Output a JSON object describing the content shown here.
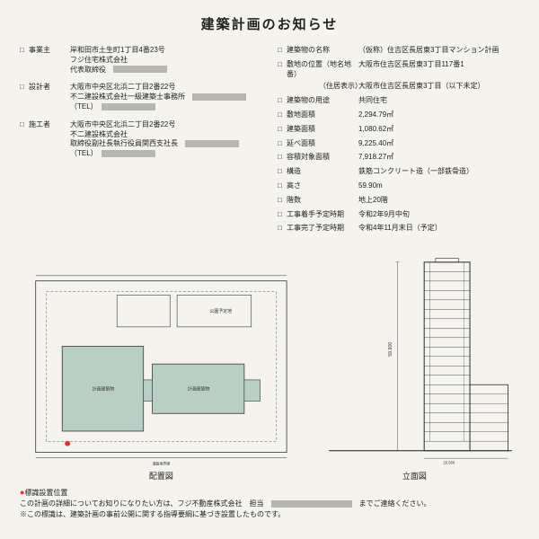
{
  "title": "建築計画のお知らせ",
  "left": [
    {
      "label": "事業主",
      "lines": [
        "岸和田市土生町1丁目4番23号",
        "フジ住宅株式会社",
        "代表取締役　"
      ],
      "redact": [
        false,
        false,
        true
      ]
    },
    {
      "label": "設計者",
      "lines": [
        "大阪市中央区北浜二丁目2番22号",
        "不二建設株式会社一級建築士事務所　",
        "（TEL）　"
      ],
      "redact": [
        false,
        true,
        true
      ]
    },
    {
      "label": "施工者",
      "lines": [
        "大阪市中央区北浜二丁目2番22号",
        "不二建設株式会社",
        "取締役副社長執行役員関西支社長　",
        "（TEL）　"
      ],
      "redact": [
        false,
        false,
        true,
        true
      ]
    }
  ],
  "right": [
    {
      "label": "建築物の名称",
      "value": "（仮称）住吉区長居東3丁目マンション計画"
    },
    {
      "label": "敷地の位置（地名地番）\n　　　　　（住居表示）",
      "value": "大阪市住吉区長居東3丁目117番1\n大阪市住吉区長居東3丁目（以下未定）"
    },
    {
      "label": "建築物の用途",
      "value": "共同住宅"
    },
    {
      "label": "敷地面積",
      "value": "2,294.79㎡"
    },
    {
      "label": "建築面積",
      "value": "1,080.62㎡"
    },
    {
      "label": "延べ面積",
      "value": "9,225.40㎡"
    },
    {
      "label": "容積対象面積",
      "value": "7,918.27㎡"
    },
    {
      "label": "構造",
      "value": "鉄筋コンクリート造（一部鉄骨造）"
    },
    {
      "label": "高さ",
      "value": "59.90m"
    },
    {
      "label": "階数",
      "value": "地上20階"
    },
    {
      "label": "工事着手予定時期",
      "value": "令和2年9月中旬"
    },
    {
      "label": "工事完了予定時期",
      "value": "令和4年11月末日（予定）"
    }
  ],
  "diagrams": {
    "site_label": "配置図",
    "elev_label": "立面図",
    "marker_label": "標識設置位置",
    "bldg_fill": "#b9cfc6",
    "line_color": "#333333",
    "elev_height_m": 59.9,
    "floors": 20
  },
  "footer": {
    "line1_a": "この計画の詳細についてお知りになりたい方は、フジ不動産株式会社　担当　",
    "line1_b": "　までご連絡ください。",
    "line2": "※この標識は、建築計画の事前公開に関する指導要綱に基づき設置したものです。"
  }
}
